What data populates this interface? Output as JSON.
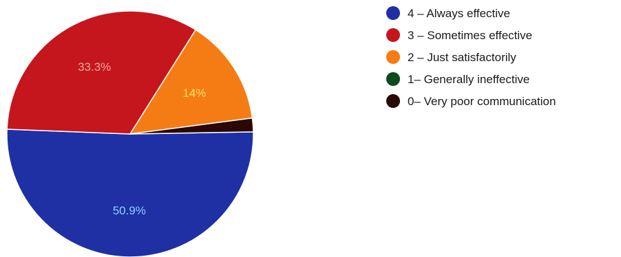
{
  "chart_data": {
    "type": "pie",
    "legend_position": "right",
    "slices": [
      {
        "label": "4 – Always effective",
        "value": 50.9,
        "display": "50.9%",
        "color": "#1f2fa4",
        "label_color": "#8fd0ff"
      },
      {
        "label": "3 – Sometimes effective",
        "value": 33.3,
        "display": "33.3%",
        "color": "#c4161c",
        "label_color": "#f2a6a0"
      },
      {
        "label": "2 – Just satisfactorily",
        "value": 14,
        "display": "14%",
        "color": "#f57c14",
        "label_color": "#ffe26a"
      },
      {
        "label": "1– Generally ineffective",
        "value": 0,
        "display": "",
        "color": "#0d4a1c",
        "label_color": "#ffffff"
      },
      {
        "label": "0– Very poor communication",
        "value": 1.8,
        "display": "",
        "color": "#2a0808",
        "label_color": "#ffffff"
      }
    ]
  }
}
